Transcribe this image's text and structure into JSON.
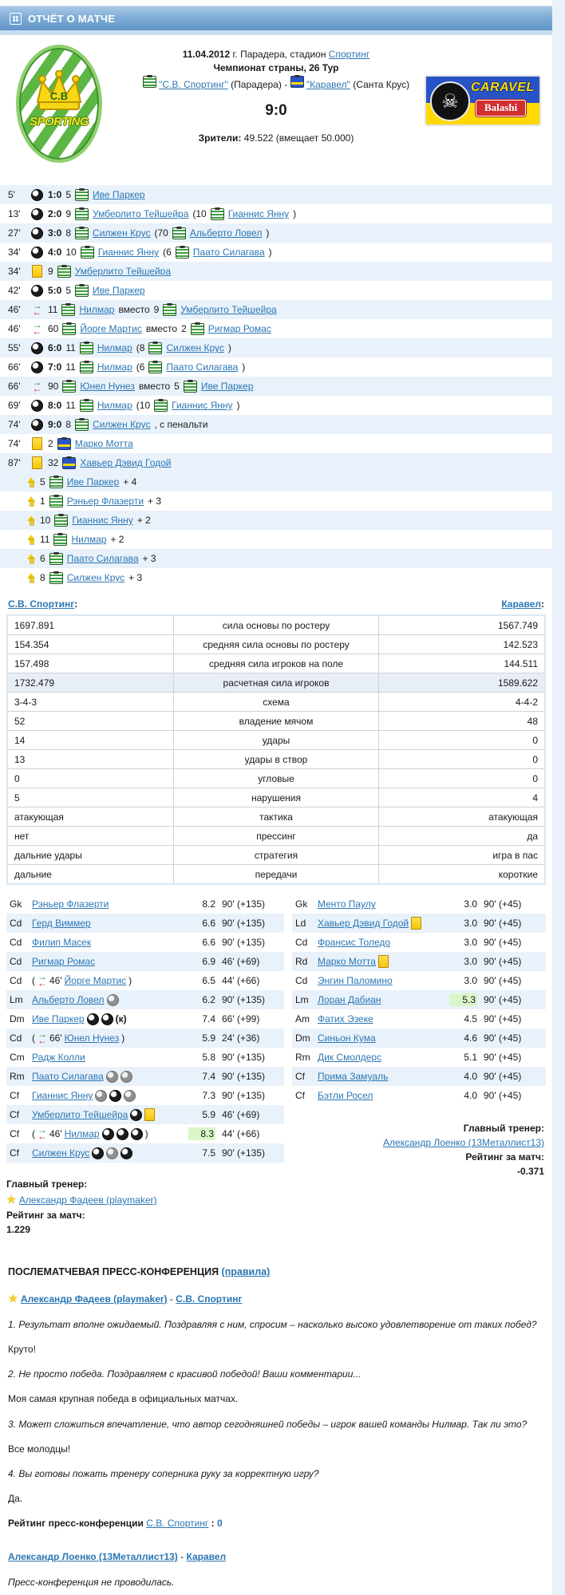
{
  "labels": {
    "colon": ":",
    "colon_spaced": " : ",
    "dash": " - ",
    "substitute_word": "вместо",
    "quote": "\""
  },
  "header": {
    "title": "ОТЧЁТ О МАТЧЕ"
  },
  "match": {
    "date": "11.04.2012",
    "date_rest": " г. Парадера, стадион ",
    "stadium": "Спортинг",
    "tournament": "Чемпионат страны, 26 Тур",
    "home_name_quoted": "\"С.В. Спортинг\"",
    "home_city": " (Парадера) ",
    "separator": "- ",
    "away_name_quoted": "\"Каравел\"",
    "away_city": " (Санта Крус)",
    "score": "9:0",
    "attendance_label": "Зрители:",
    "attendance_value": " 49.522 (вмещает 50.000)"
  },
  "logos": {
    "home": {
      "initials": "C.B",
      "text": "SPORTING"
    },
    "away": {
      "skull": "☠",
      "brand": "CARAVEL",
      "sub": "Balashi"
    }
  },
  "events": [
    {
      "time": "5'",
      "type": "goal",
      "score": "1:0",
      "num": "5",
      "player": "Иве Паркер"
    },
    {
      "time": "13'",
      "type": "goal",
      "score": "2:0",
      "num": "9",
      "player": "Умберлито Тейшейра",
      "assist_num": "10",
      "assist": "Гианнис Янну"
    },
    {
      "time": "27'",
      "type": "goal",
      "score": "3:0",
      "num": "8",
      "player": "Силжен Крус",
      "assist_num": "70",
      "assist": "Альберто Ловел"
    },
    {
      "time": "34'",
      "type": "goal",
      "score": "4:0",
      "num": "10",
      "player": "Гианнис Янну",
      "assist_num": "6",
      "assist": "Паато Силагава"
    },
    {
      "time": "34'",
      "type": "yellow",
      "num": "9",
      "player": "Умберлито Тейшейра"
    },
    {
      "time": "42'",
      "type": "goal",
      "score": "5:0",
      "num": "5",
      "player": "Иве Паркер"
    },
    {
      "time": "46'",
      "type": "sub",
      "num": "11",
      "player": "Нилмар",
      "out_num": "9",
      "out_player": "Умберлито Тейшейра"
    },
    {
      "time": "46'",
      "type": "sub",
      "num": "60",
      "player": "Йорге Мартис",
      "out_num": "2",
      "out_player": "Ригмар Ромас"
    },
    {
      "time": "55'",
      "type": "goal",
      "score": "6:0",
      "num": "11",
      "player": "Нилмар",
      "assist_num": "8",
      "assist": "Силжен Крус"
    },
    {
      "time": "66'",
      "type": "goal",
      "score": "7:0",
      "num": "11",
      "player": "Нилмар",
      "assist_num": "6",
      "assist": "Паато Силагава"
    },
    {
      "time": "66'",
      "type": "sub",
      "num": "90",
      "player": "Юнел Нунез",
      "out_num": "5",
      "out_player": "Иве Паркер"
    },
    {
      "time": "69'",
      "type": "goal",
      "score": "8:0",
      "num": "11",
      "player": "Нилмар",
      "assist_num": "10",
      "assist": "Гианнис Янну"
    },
    {
      "time": "74'",
      "type": "goal",
      "score": "9:0",
      "num": "8",
      "player": "Силжен Крус",
      "note": ", с пенальти"
    },
    {
      "time": "74'",
      "type": "yellow",
      "num": "2",
      "player": "Марко Мотта",
      "team": "away"
    },
    {
      "time": "87'",
      "type": "yellow",
      "num": "32",
      "player": "Хавьер Дэвид Годой",
      "team": "away"
    }
  ],
  "bonuses": [
    {
      "num": "5",
      "player": "Иве Паркер",
      "value": "+ 4"
    },
    {
      "num": "1",
      "player": "Рэньер Флазерти",
      "value": "+ 3"
    },
    {
      "num": "10",
      "player": "Гианнис Янну",
      "value": "+ 2"
    },
    {
      "num": "11",
      "player": "Нилмар",
      "value": "+ 2"
    },
    {
      "num": "6",
      "player": "Паато Силагава",
      "value": "+ 3"
    },
    {
      "num": "8",
      "player": "Силжен Крус",
      "value": "+ 3"
    }
  ],
  "stats": {
    "home_team": "С.В. Спортинг",
    "away_team": "Каравел",
    "rows": [
      {
        "home": "1697.891",
        "label": "сила основы по ростеру",
        "away": "1567.749",
        "highlight": false
      },
      {
        "home": "154.354",
        "label": "средняя сила основы по ростеру",
        "away": "142.523",
        "highlight": false
      },
      {
        "home": "157.498",
        "label": "средняя сила игроков на поле",
        "away": "144.511",
        "highlight": false
      },
      {
        "home": "1732.479",
        "label": "расчетная сила игроков",
        "away": "1589.622",
        "highlight": true
      },
      {
        "home": "3-4-3",
        "label": "схема",
        "away": "4-4-2",
        "highlight": false
      },
      {
        "home": "52",
        "label": "владение мячом",
        "away": "48",
        "highlight": false
      },
      {
        "home": "14",
        "label": "удары",
        "away": "0",
        "highlight": false
      },
      {
        "home": "13",
        "label": "удары в створ",
        "away": "0",
        "highlight": false
      },
      {
        "home": "0",
        "label": "угловые",
        "away": "0",
        "highlight": false
      },
      {
        "home": "5",
        "label": "нарушения",
        "away": "4",
        "highlight": false
      },
      {
        "home": "атакующая",
        "label": "тактика",
        "away": "атакующая",
        "highlight": false
      },
      {
        "home": "нет",
        "label": "прессинг",
        "away": "да",
        "highlight": false
      },
      {
        "home": "дальние удары",
        "label": "стратегия",
        "away": "игра в пас",
        "highlight": false
      },
      {
        "home": "дальние",
        "label": "передачи",
        "away": "короткие",
        "highlight": false
      }
    ]
  },
  "lineups": {
    "home": {
      "players": [
        {
          "pos": "Gk",
          "name": "Рэньер Флазерти",
          "rating": "8.2",
          "time": "90' (+135)"
        },
        {
          "pos": "Cd",
          "name": "Герд Виммер",
          "rating": "6.6",
          "time": "90' (+135)"
        },
        {
          "pos": "Cd",
          "name": "Филип Масек",
          "rating": "6.6",
          "time": "90' (+135)"
        },
        {
          "pos": "Cd",
          "name": "Ригмар Ромас",
          "rating": "6.9",
          "time": "46' (+69)"
        },
        {
          "pos": "Cd",
          "sub_time": "46'",
          "name": "Йорге Мартис",
          "rating": "6.5",
          "time": "44' (+66)"
        },
        {
          "pos": "Lm",
          "name": "Альберто Ловел",
          "icons": [
            "assist"
          ],
          "rating": "6.2",
          "time": "90' (+135)"
        },
        {
          "pos": "Dm",
          "name": "Иве Паркер",
          "icons": [
            "goal",
            "goal"
          ],
          "captain": "(к)",
          "rating": "7.4",
          "time": "66' (+99)"
        },
        {
          "pos": "Cd",
          "sub_time": "66'",
          "name": "Юнел Нунез",
          "rating": "5.9",
          "time": "24' (+36)"
        },
        {
          "pos": "Cm",
          "name": "Радж Колли",
          "rating": "5.8",
          "time": "90' (+135)"
        },
        {
          "pos": "Rm",
          "name": "Паато Силагава",
          "icons": [
            "assist",
            "assist"
          ],
          "rating": "7.4",
          "time": "90' (+135)"
        },
        {
          "pos": "Cf",
          "name": "Гианнис Янну",
          "icons": [
            "assist",
            "goal",
            "assist"
          ],
          "rating": "7.3",
          "time": "90' (+135)"
        },
        {
          "pos": "Cf",
          "name": "Умберлито Тейшейра",
          "icons": [
            "goal",
            "yellow"
          ],
          "rating": "5.9",
          "time": "46' (+69)"
        },
        {
          "pos": "Cf",
          "sub_time": "46'",
          "name": "Нилмар",
          "icons": [
            "goal",
            "goal",
            "goal"
          ],
          "rating": "8.3",
          "rating_highlight": true,
          "time": "44' (+66)"
        },
        {
          "pos": "Cf",
          "name": "Силжен Крус",
          "icons": [
            "goal",
            "assist",
            "goal"
          ],
          "rating": "7.5",
          "time": "90' (+135)"
        }
      ],
      "coach_label": "Главный тренер:",
      "coach": "Александр Фадеев (playmaker)",
      "rating_label": "Рейтинг за матч:",
      "rating": "1.229"
    },
    "away": {
      "players": [
        {
          "pos": "Gk",
          "name": "Менто Паулу",
          "rating": "3.0",
          "time": "90' (+45)"
        },
        {
          "pos": "Ld",
          "name": "Хавьер Дэвид Годой",
          "icons": [
            "yellow"
          ],
          "rating": "3.0",
          "time": "90' (+45)"
        },
        {
          "pos": "Cd",
          "name": "Франсис Толедо",
          "rating": "3.0",
          "time": "90' (+45)"
        },
        {
          "pos": "Rd",
          "name": "Марко Мотта",
          "icons": [
            "yellow"
          ],
          "rating": "3.0",
          "time": "90' (+45)"
        },
        {
          "pos": "Cd",
          "name": "Энгин Паломино",
          "rating": "3.0",
          "time": "90' (+45)"
        },
        {
          "pos": "Lm",
          "name": "Лоран Дабиан",
          "rating": "5.3",
          "rating_highlight": true,
          "time": "90' (+45)"
        },
        {
          "pos": "Am",
          "name": "Фатих Эзеке",
          "rating": "4.5",
          "time": "90' (+45)"
        },
        {
          "pos": "Dm",
          "name": "Синьон Кума",
          "rating": "4.6",
          "time": "90' (+45)"
        },
        {
          "pos": "Rm",
          "name": "Дик Смолдерс",
          "rating": "5.1",
          "time": "90' (+45)"
        },
        {
          "pos": "Cf",
          "name": "Прима Замуаль",
          "rating": "4.0",
          "time": "90' (+45)"
        },
        {
          "pos": "Cf",
          "name": "Бэтли Росел",
          "rating": "4.0",
          "time": "90' (+45)"
        }
      ],
      "coach_label": "Главный тренер:",
      "coach": "Александр Лоенко (13Металлист13)",
      "rating_label": "Рейтинг за матч:",
      "rating": "-0.371"
    }
  },
  "press": {
    "title": "ПОСЛЕМАТЧЕВАЯ ПРЕСС-КОНФЕРЕНЦИЯ ",
    "rules": "(правила)",
    "home_manager": "Александр Фадеев (playmaker)",
    "home_team": "С.В. Спортинг",
    "qa": [
      {
        "q": "1. Результат вполне ожидаемый. Поздравляя с ним, спросим – насколько высоко удовлетворение от таких побед?",
        "a": "Круто!"
      },
      {
        "q": "2. Не просто победа. Поздравляем с красивой победой! Ваши комментарии...",
        "a": "Моя самая крупная победа в официальных матчах."
      },
      {
        "q": "3. Может сложиться впечатление, что автор сегодняшней победы – игрок вашей команды Нилмар. Так ли это?",
        "a": "Все молодцы!"
      },
      {
        "q": "4. Вы готовы пожать тренеру соперника руку за корректную игру?",
        "a": "Да."
      }
    ],
    "rating_label": "Рейтинг пресс-конференции ",
    "rating_team": "С.В. Спортинг",
    "rating_value": "0",
    "away_manager": "Александр Лоенко (13Металлист13)",
    "away_team": "Каравел",
    "away_note": "Пресс-конференция не проводилась."
  }
}
